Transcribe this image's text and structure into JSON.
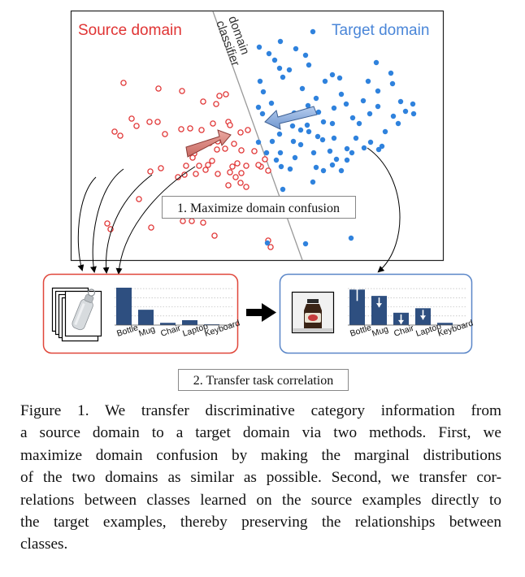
{
  "figure": {
    "scatter": {
      "source_label": "Source domain",
      "target_label": "Target domain",
      "classifier_label_line1": "domain",
      "classifier_label_line2": "classifier",
      "confusion_label": "1. Maximize domain confusion",
      "source_color": "#e03434",
      "target_color": "#2f82dd"
    },
    "source_panel": {
      "categories": [
        "Bottle",
        "Mug",
        "Chair",
        "Laptop",
        "Keyboard"
      ],
      "values": [
        1.0,
        0.41,
        0.06,
        0.13,
        0.02
      ],
      "border_color": "#e0463a"
    },
    "target_panel": {
      "categories": [
        "Bottle",
        "Mug",
        "Chair",
        "Laptop",
        "Keyboard"
      ],
      "values": [
        0.95,
        0.78,
        0.33,
        0.45,
        0.06
      ],
      "arrows": [
        "up",
        "down",
        "down",
        "down",
        ""
      ],
      "border_color": "#5a86c8"
    },
    "transfer_label": "2. Transfer task correlation"
  },
  "caption": {
    "lines": [
      "Figure 1. We transfer discriminative category information from",
      "a source domain to a target domain via two methods. First, we",
      "maximize domain confusion by making the marginal distributions",
      "of the two domains as similar as possible. Second, we transfer cor-",
      "relations between classes learned on the source examples directly to",
      "the target examples, thereby preserving the relationships between",
      "classes."
    ]
  }
}
